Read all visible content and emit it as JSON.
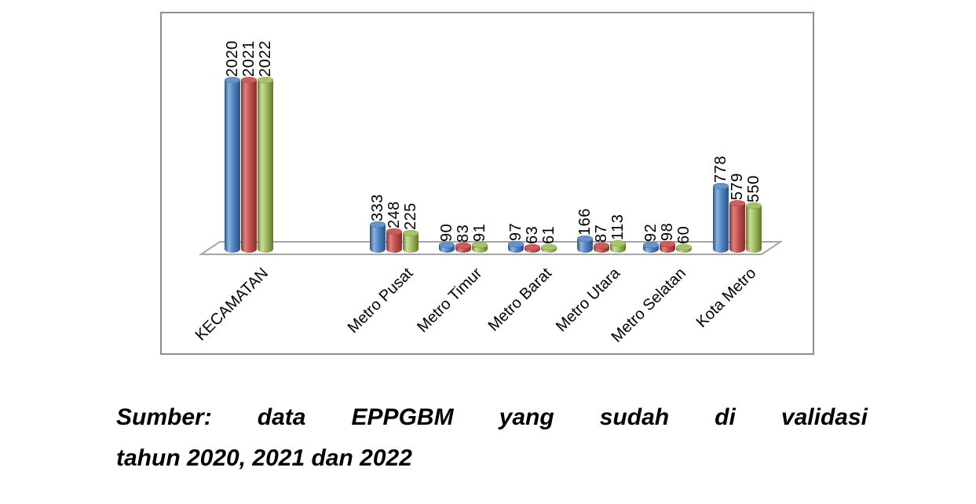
{
  "chart_data": {
    "type": "bar",
    "style": "3d-cylinder",
    "title": "",
    "xlabel": "",
    "ylabel": "",
    "legend": "none",
    "value_axis_visible": false,
    "gridlines": false,
    "data_label_rotation": 90,
    "category_label_rotation": 45,
    "categories": [
      "KECAMATAN",
      "Metro Pusat",
      "Metro Timur",
      "Metro Barat",
      "Metro Utara",
      "Metro Selatan",
      "Kota Metro"
    ],
    "series": [
      {
        "name": "2020",
        "color_base": "#4f81bd",
        "color_light": "#89b3e2",
        "color_dark": "#2a5483",
        "color_top": "#6795cb",
        "values": [
          2020,
          333,
          90,
          97,
          166,
          92,
          778
        ]
      },
      {
        "name": "2021",
        "color_base": "#c0504d",
        "color_light": "#e2827f",
        "color_dark": "#832f2d",
        "color_top": "#cb5f5c",
        "values": [
          2021,
          248,
          83,
          63,
          87,
          98,
          579
        ]
      },
      {
        "name": "2022",
        "color_base": "#9bbb59",
        "color_light": "#cade9b",
        "color_dark": "#5f7731",
        "color_top": "#a8c46a",
        "values": [
          2022,
          225,
          91,
          61,
          113,
          60,
          550
        ]
      }
    ]
  },
  "caption": {
    "line1": "Sumber: data EPPGBM yang sudah di validasi",
    "line2": "tahun 2020, 2021 dan 2022"
  }
}
